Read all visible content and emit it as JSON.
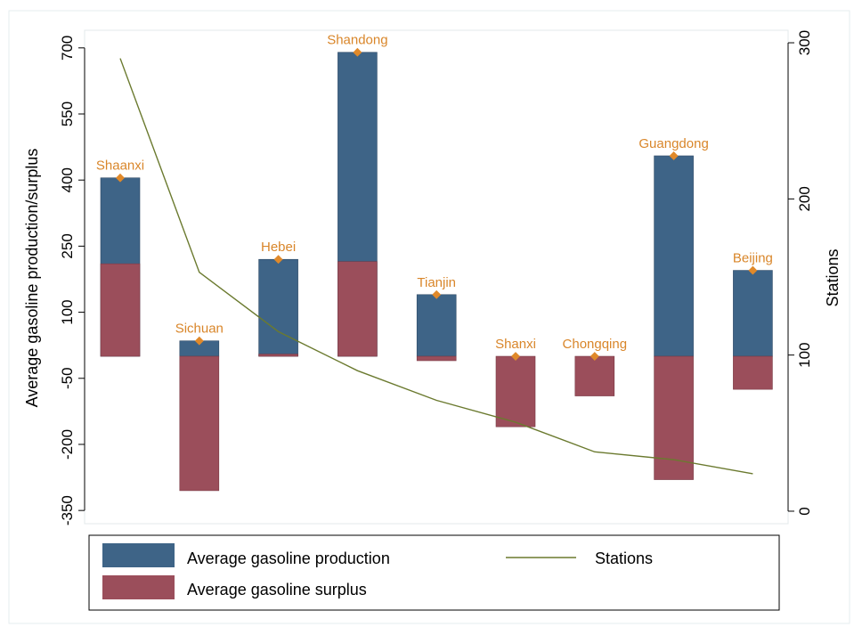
{
  "chart_data": {
    "type": "bar",
    "categories": [
      "Shaanxi",
      "Sichuan",
      "Hebei",
      "Shandong",
      "Tianjin",
      "Shanxi",
      "Chongqing",
      "Guangdong",
      "Beijing"
    ],
    "series": [
      {
        "name": "Average gasoline production",
        "type": "bar",
        "values": [
          405,
          35,
          220,
          690,
          140,
          0,
          0,
          455,
          195
        ],
        "color": "#3e6487"
      },
      {
        "name": "Average gasoline surplus",
        "type": "bar",
        "values": [
          210,
          -305,
          5,
          215,
          -10,
          -160,
          -90,
          -280,
          -75
        ],
        "color": "#9b4e5b"
      },
      {
        "name": "Stations",
        "type": "line",
        "axis": "right",
        "values": [
          290,
          153,
          115,
          90,
          71,
          57,
          38,
          33,
          24
        ],
        "color": "#6b7a2f"
      }
    ],
    "ylabel": "Average gasoline production/surplus",
    "y2label": "Stations",
    "ylim": [
      -380,
      740
    ],
    "y2lim": [
      -8,
      308
    ],
    "yticks": [
      "700",
      "550",
      "400",
      "250",
      "100",
      "-50",
      "-200",
      "-350"
    ],
    "yticks_values": [
      700,
      550,
      400,
      250,
      100,
      -50,
      -200,
      -350
    ],
    "y2ticks": [
      "300",
      "200",
      "100",
      "0"
    ],
    "y2ticks_values": [
      300,
      200,
      100,
      0
    ],
    "grid": false,
    "legend_position": "bottom"
  }
}
